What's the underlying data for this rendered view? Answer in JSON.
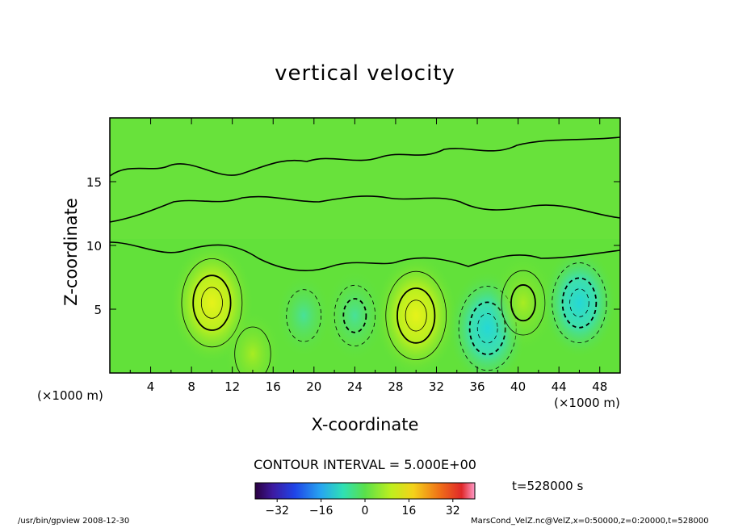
{
  "chart_data": {
    "type": "heatmap",
    "title": "vertical velocity",
    "xlabel": "X-coordinate",
    "ylabel": "Z-coordinate",
    "x_unit_left": "(×1000 m)",
    "x_unit_right": "(×1000 m)",
    "xlim": [
      0,
      50
    ],
    "ylim": [
      0,
      20
    ],
    "x_ticks": [
      "4",
      "8",
      "12",
      "16",
      "20",
      "24",
      "28",
      "32",
      "36",
      "40",
      "44",
      "48"
    ],
    "y_ticks": [
      "5",
      "10",
      "15"
    ],
    "contour_interval_label": "CONTOUR INTERVAL = 5.000E+00",
    "time_label": "t=528000 s",
    "colorbar": {
      "range": [
        -40,
        40
      ],
      "ticks": [
        "−32",
        "−16",
        "0",
        "16",
        "32"
      ]
    },
    "features": [
      {
        "x": 10,
        "z": 5.5,
        "value": 20,
        "sign": "positive"
      },
      {
        "x": 14,
        "z": 1.5,
        "value": 8,
        "sign": "positive"
      },
      {
        "x": 19,
        "z": 4.5,
        "value": -7,
        "sign": "negative"
      },
      {
        "x": 24,
        "z": 4.5,
        "value": -10,
        "sign": "negative"
      },
      {
        "x": 30,
        "z": 4.5,
        "value": 20,
        "sign": "positive"
      },
      {
        "x": 37,
        "z": 3.5,
        "value": -18,
        "sign": "negative"
      },
      {
        "x": 40.5,
        "z": 5.5,
        "value": 12,
        "sign": "positive"
      },
      {
        "x": 46,
        "z": 5.5,
        "value": -16,
        "sign": "negative"
      }
    ]
  },
  "footer": {
    "left": "/usr/bin/gpview   2008-12-30",
    "right": "MarsCond_VelZ.nc@VelZ,x=0:50000,z=0:20000,t=528000"
  }
}
